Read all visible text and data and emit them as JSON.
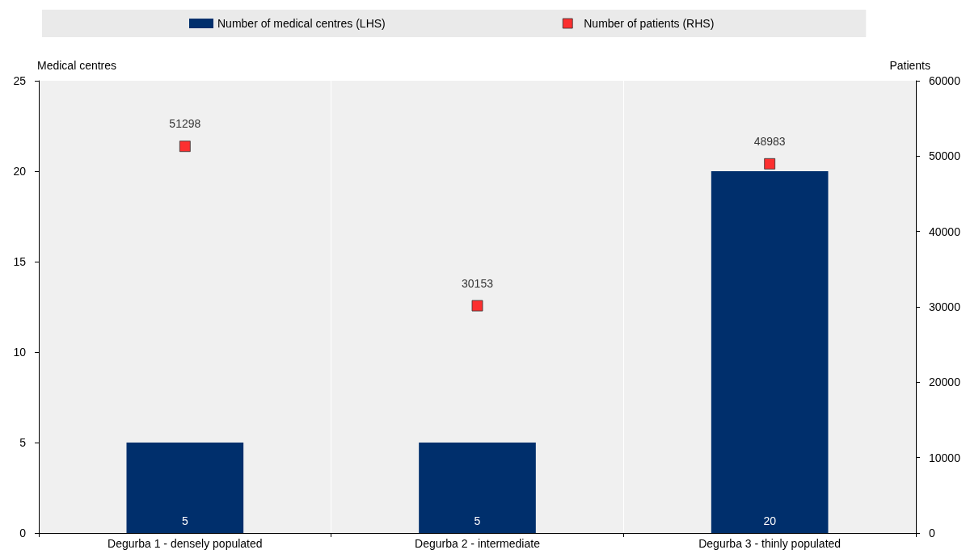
{
  "chart_data": {
    "type": "bar",
    "categories": [
      "Degurba 1 - densely populated",
      "Degurba 2 - intermediate",
      "Degurba 3 - thinly populated"
    ],
    "series": [
      {
        "name": "Number of medical centres (LHS)",
        "color": "#002f6c",
        "values": [
          5,
          5,
          20
        ]
      },
      {
        "name": "Number of patients (RHS)",
        "type": "scatter",
        "axis": "y2",
        "marker": "square",
        "color": "#ff0000",
        "values": [
          51298,
          30153,
          48983
        ]
      }
    ],
    "ylabel": "Medical centres",
    "y2label": "Patients",
    "ylim": [
      0,
      25
    ],
    "yticks": [
      0,
      5,
      10,
      15,
      20,
      25
    ],
    "y2lim": [
      0,
      60000
    ],
    "y2ticks": [
      0,
      10000,
      20000,
      30000,
      40000,
      50000,
      60000
    ],
    "data_labels": true,
    "grid": "x",
    "legend": "top"
  }
}
